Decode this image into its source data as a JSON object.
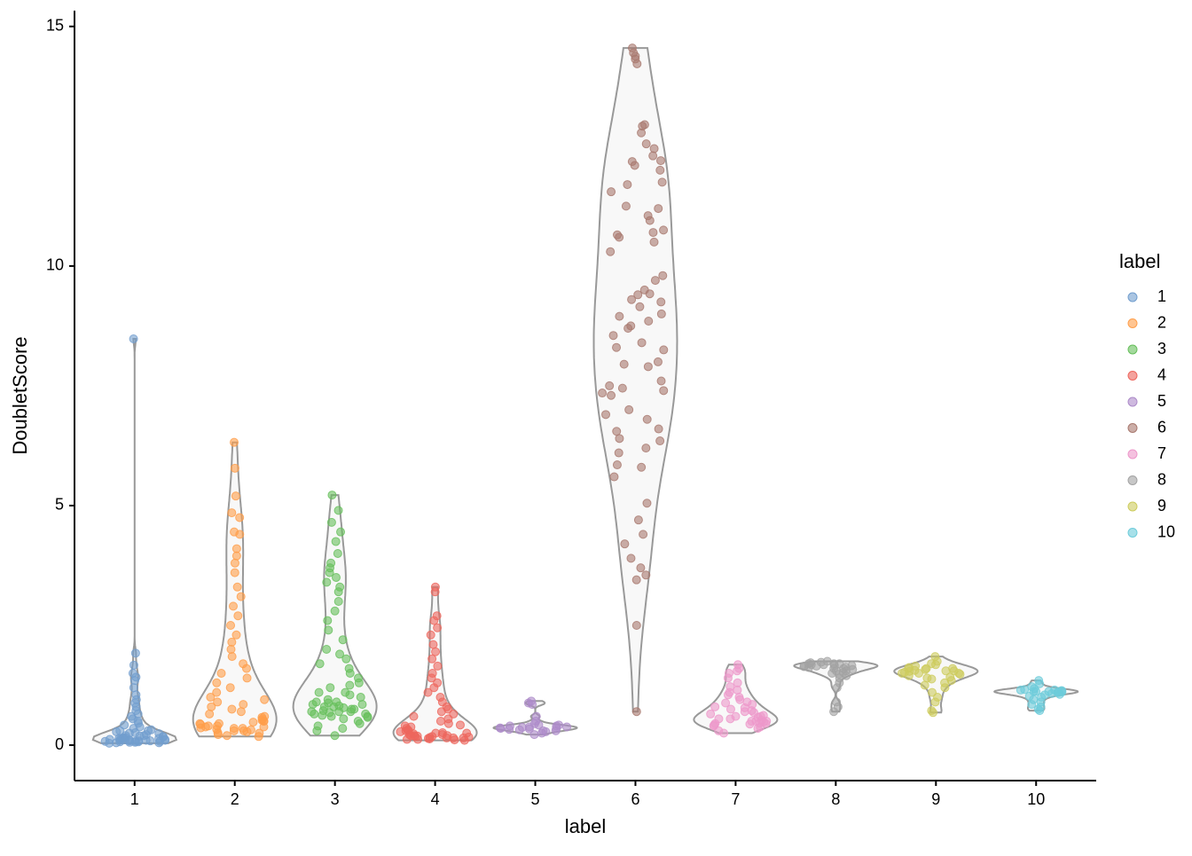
{
  "chart_data": {
    "type": "violin",
    "xlabel": "label",
    "ylabel": "DoubletScore",
    "categories": [
      "1",
      "2",
      "3",
      "4",
      "5",
      "6",
      "7",
      "8",
      "9",
      "10"
    ],
    "ylim": [
      -0.74,
      15.33
    ],
    "yticks": [
      0,
      5,
      10,
      15
    ],
    "legend_title": "label",
    "legend": "right",
    "series": [
      {
        "name": "1",
        "color": "#729ece",
        "values": [
          8.48,
          1.92,
          1.67,
          1.5,
          1.42,
          1.35,
          1.2,
          1.05,
          0.95,
          0.88,
          0.8,
          0.72,
          0.65,
          0.6,
          0.55,
          0.5,
          0.46,
          0.42,
          0.38,
          0.35,
          0.32,
          0.3,
          0.28,
          0.26,
          0.24,
          0.22,
          0.2,
          0.19,
          0.18,
          0.17,
          0.16,
          0.15,
          0.14,
          0.13,
          0.12,
          0.12,
          0.11,
          0.1,
          0.1,
          0.09,
          0.09,
          0.08,
          0.08,
          0.07,
          0.07,
          0.06,
          0.06,
          0.05,
          0.05,
          0.04,
          0.2,
          0.15,
          0.1,
          0.12,
          0.08,
          0.3,
          0.25,
          0.14,
          0.11,
          0.09
        ]
      },
      {
        "name": "2",
        "color": "#ff9e4a",
        "values": [
          6.32,
          5.78,
          5.2,
          4.85,
          4.75,
          4.45,
          4.4,
          4.1,
          3.95,
          3.8,
          3.6,
          3.3,
          3.1,
          2.9,
          2.7,
          2.5,
          2.3,
          2.15,
          2.0,
          1.85,
          1.7,
          1.6,
          1.5,
          1.4,
          1.3,
          1.2,
          1.1,
          1.0,
          0.95,
          0.9,
          0.85,
          0.8,
          0.75,
          0.7,
          0.65,
          0.6,
          0.58,
          0.55,
          0.52,
          0.5,
          0.48,
          0.45,
          0.43,
          0.4,
          0.38,
          0.36,
          0.35,
          0.33,
          0.32,
          0.3,
          0.28,
          0.26,
          0.25,
          0.22,
          0.2,
          0.18,
          0.4,
          0.35,
          0.45,
          0.5,
          0.3,
          0.38
        ]
      },
      {
        "name": "3",
        "color": "#67bf5c",
        "values": [
          5.22,
          4.9,
          4.65,
          4.45,
          4.25,
          4.0,
          3.8,
          3.7,
          3.6,
          3.5,
          3.4,
          3.3,
          3.2,
          3.0,
          2.8,
          2.6,
          2.4,
          2.2,
          2.0,
          1.9,
          1.8,
          1.7,
          1.6,
          1.5,
          1.4,
          1.3,
          1.25,
          1.2,
          1.1,
          1.05,
          1.0,
          0.95,
          0.9,
          0.88,
          0.85,
          0.82,
          0.8,
          0.78,
          0.75,
          0.72,
          0.7,
          0.68,
          0.65,
          0.62,
          0.6,
          0.58,
          0.55,
          0.5,
          0.45,
          0.4,
          0.35,
          0.3,
          0.2,
          0.7,
          0.75,
          0.65,
          0.8,
          0.85,
          0.6,
          0.7,
          1.1,
          0.9
        ]
      },
      {
        "name": "4",
        "color": "#ed665d",
        "values": [
          3.3,
          3.2,
          2.7,
          2.6,
          2.45,
          2.3,
          2.1,
          1.95,
          1.8,
          1.65,
          1.5,
          1.4,
          1.3,
          1.2,
          1.1,
          1.0,
          0.9,
          0.8,
          0.75,
          0.7,
          0.65,
          0.6,
          0.55,
          0.5,
          0.45,
          0.42,
          0.4,
          0.38,
          0.35,
          0.32,
          0.3,
          0.28,
          0.26,
          0.25,
          0.24,
          0.22,
          0.2,
          0.2,
          0.19,
          0.18,
          0.17,
          0.16,
          0.15,
          0.15,
          0.14,
          0.13,
          0.12,
          0.12,
          0.11,
          0.1,
          0.2,
          0.15,
          0.25,
          0.3,
          0.18,
          0.22
        ]
      },
      {
        "name": "5",
        "color": "#ad8bc9",
        "values": [
          0.92,
          0.88,
          0.85,
          0.6,
          0.5,
          0.45,
          0.42,
          0.4,
          0.38,
          0.37,
          0.36,
          0.35,
          0.34,
          0.33,
          0.32,
          0.3,
          0.28,
          0.25,
          0.22,
          0.4,
          0.38,
          0.35,
          0.3,
          0.42
        ]
      },
      {
        "name": "6",
        "color": "#a8786e",
        "values": [
          14.55,
          14.45,
          14.38,
          14.32,
          14.22,
          12.95,
          12.92,
          12.78,
          12.55,
          12.45,
          12.3,
          12.2,
          12.18,
          12.1,
          12.0,
          11.75,
          11.7,
          11.55,
          11.25,
          11.2,
          11.05,
          10.95,
          10.75,
          10.7,
          10.65,
          10.6,
          10.5,
          10.3,
          9.8,
          9.7,
          9.5,
          9.42,
          9.4,
          9.3,
          9.25,
          9.15,
          9.0,
          8.95,
          8.85,
          8.75,
          8.7,
          8.55,
          8.4,
          8.3,
          8.25,
          8.0,
          7.95,
          7.9,
          7.6,
          7.5,
          7.45,
          7.4,
          7.35,
          7.3,
          7.0,
          6.9,
          6.8,
          6.6,
          6.55,
          6.4,
          6.35,
          6.2,
          6.1,
          5.85,
          5.8,
          5.6,
          5.05,
          4.7,
          4.4,
          4.2,
          3.9,
          3.7,
          3.55,
          3.45,
          2.5,
          0.7
        ]
      },
      {
        "name": "7",
        "color": "#ed97ca",
        "values": [
          1.68,
          1.6,
          1.55,
          1.5,
          1.4,
          1.3,
          1.22,
          1.15,
          1.1,
          1.05,
          1.0,
          0.95,
          0.9,
          0.88,
          0.85,
          0.8,
          0.78,
          0.75,
          0.72,
          0.7,
          0.68,
          0.65,
          0.62,
          0.6,
          0.58,
          0.55,
          0.52,
          0.5,
          0.5,
          0.48,
          0.46,
          0.45,
          0.44,
          0.42,
          0.4,
          0.38,
          0.35,
          0.3,
          0.25,
          0.55,
          0.5,
          0.6,
          0.45
        ]
      },
      {
        "name": "8",
        "color": "#a2a2a2",
        "values": [
          1.75,
          1.73,
          1.72,
          1.7,
          1.7,
          1.68,
          1.68,
          1.66,
          1.65,
          1.65,
          1.64,
          1.62,
          1.6,
          1.6,
          1.58,
          1.55,
          1.55,
          1.52,
          1.5,
          1.48,
          1.45,
          1.4,
          1.3,
          1.2,
          0.9,
          0.8,
          0.7,
          1.7,
          1.66,
          1.63
        ]
      },
      {
        "name": "9",
        "color": "#cdcc5d",
        "values": [
          1.85,
          1.75,
          1.7,
          1.68,
          1.65,
          1.62,
          1.6,
          1.6,
          1.58,
          1.56,
          1.55,
          1.54,
          1.52,
          1.5,
          1.5,
          1.48,
          1.45,
          1.42,
          1.4,
          1.38,
          1.35,
          1.3,
          1.25,
          1.2,
          1.1,
          1.0,
          0.9,
          0.72,
          0.68,
          1.55,
          1.6,
          1.5
        ]
      },
      {
        "name": "10",
        "color": "#6dccda",
        "values": [
          1.35,
          1.28,
          1.22,
          1.18,
          1.16,
          1.15,
          1.14,
          1.13,
          1.12,
          1.12,
          1.11,
          1.1,
          1.1,
          1.08,
          1.06,
          1.05,
          1.02,
          1.0,
          0.95,
          0.9,
          0.85,
          0.8,
          0.75,
          0.72,
          1.12,
          1.15,
          1.1
        ]
      }
    ]
  }
}
